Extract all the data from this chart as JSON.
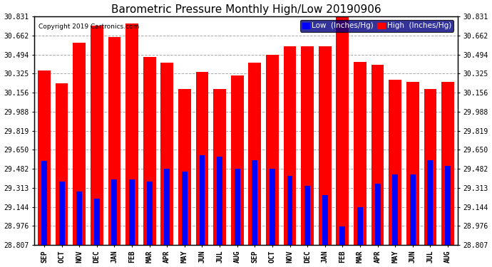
{
  "title": "Barometric Pressure Monthly High/Low 20190906",
  "copyright": "Copyright 2019 Cartronics.com",
  "legend_low": "Low  (Inches/Hg)",
  "legend_high": "High  (Inches/Hg)",
  "months": [
    "SEP",
    "OCT",
    "NOV",
    "DEC",
    "JAN",
    "FEB",
    "MAR",
    "APR",
    "MAY",
    "JUN",
    "JUL",
    "AUG",
    "SEP",
    "OCT",
    "NOV",
    "DEC",
    "JAN",
    "FEB",
    "MAR",
    "APR",
    "MAY",
    "JUN",
    "JUL",
    "AUG"
  ],
  "highs": [
    30.35,
    30.24,
    30.6,
    30.75,
    30.65,
    30.77,
    30.47,
    30.42,
    30.19,
    30.34,
    30.19,
    30.31,
    30.42,
    30.49,
    30.57,
    30.57,
    30.57,
    30.83,
    30.43,
    30.4,
    30.27,
    30.25,
    30.19,
    30.25
  ],
  "lows": [
    29.55,
    29.37,
    29.28,
    29.22,
    29.39,
    29.39,
    29.37,
    29.48,
    29.46,
    29.6,
    29.59,
    29.48,
    29.56,
    29.48,
    29.42,
    29.33,
    29.25,
    28.97,
    29.14,
    29.35,
    29.43,
    29.43,
    29.56,
    29.51
  ],
  "ylim_min": 28.807,
  "ylim_max": 30.831,
  "yticks": [
    28.807,
    28.976,
    29.144,
    29.313,
    29.482,
    29.65,
    29.819,
    29.988,
    30.156,
    30.325,
    30.494,
    30.662,
    30.831
  ],
  "high_color": "#FF0000",
  "low_color": "#0000FF",
  "bg_color": "#FFFFFF",
  "grid_color": "#AAAAAA",
  "title_fontsize": 11,
  "tick_fontsize": 7,
  "legend_fontsize": 7.5
}
